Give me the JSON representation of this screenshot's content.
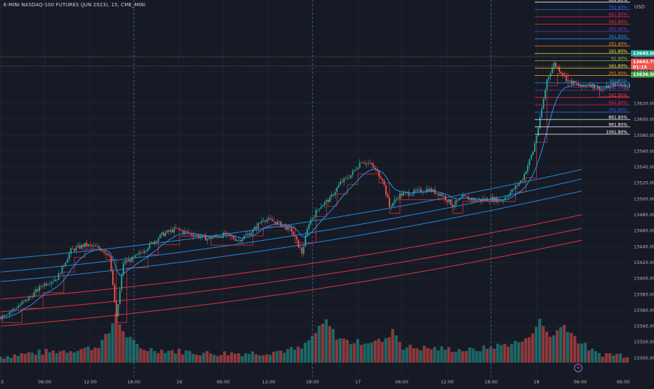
{
  "header": {
    "title": "E-MINI NASDAQ-100 FUTURES (JUN 2023), 15, CME_MINI",
    "currency": "USD"
  },
  "price_labels": {
    "upper": "13645.00",
    "last": "13642.75",
    "countdown": "01:15",
    "lower": "13636.50"
  },
  "colors": {
    "background": "#161a25",
    "up": "#26a69a",
    "down": "#ef5350",
    "grid": "#1f2330",
    "ma_fast": "#2196f3",
    "vwap": "#f23645",
    "band_blue": "#2196f3",
    "band_red": "#f23645",
    "label_upper": "#26a69a",
    "label_last": "#ef5350",
    "label_lower": "#43a047"
  },
  "chart_data": {
    "type": "candlestick",
    "instrument": "E-MINI NASDAQ-100 FUTURES (JUN 2023)",
    "interval": "15",
    "exchange": "CME_MINI",
    "ylim": [
      13290,
      13735
    ],
    "y_ticks": [
      "13680.00",
      "13660.00",
      "13620.00",
      "13600.00",
      "13580.00",
      "13560.00",
      "13540.00",
      "13520.00",
      "13500.00",
      "13480.00",
      "13460.00",
      "13440.00",
      "13420.00",
      "13400.00",
      "13380.00",
      "13360.00",
      "13340.00",
      "13320.00",
      "13300.00"
    ],
    "x_ticks": [
      "15",
      "06:00",
      "12:00",
      "18:00",
      "16",
      "06:00",
      "12:00",
      "18:00",
      "17",
      "06:00",
      "12:00",
      "18:00",
      "18",
      "06:00"
    ],
    "session_breaks_x_index": [
      3,
      7,
      11
    ],
    "price_path": [
      [
        0,
        13352
      ],
      [
        8,
        13362
      ],
      [
        16,
        13375
      ],
      [
        24,
        13392
      ],
      [
        32,
        13400
      ],
      [
        40,
        13435
      ],
      [
        48,
        13442
      ],
      [
        56,
        13438
      ],
      [
        62,
        13430
      ],
      [
        66,
        13350
      ],
      [
        70,
        13420
      ],
      [
        76,
        13425
      ],
      [
        84,
        13440
      ],
      [
        92,
        13455
      ],
      [
        100,
        13462
      ],
      [
        110,
        13455
      ],
      [
        118,
        13450
      ],
      [
        128,
        13455
      ],
      [
        136,
        13448
      ],
      [
        144,
        13460
      ],
      [
        150,
        13475
      ],
      [
        158,
        13470
      ],
      [
        166,
        13460
      ],
      [
        172,
        13432
      ],
      [
        176,
        13470
      ],
      [
        182,
        13490
      ],
      [
        188,
        13500
      ],
      [
        194,
        13520
      ],
      [
        200,
        13530
      ],
      [
        206,
        13548
      ],
      [
        212,
        13542
      ],
      [
        218,
        13525
      ],
      [
        222,
        13490
      ],
      [
        228,
        13505
      ],
      [
        236,
        13508
      ],
      [
        244,
        13512
      ],
      [
        252,
        13505
      ],
      [
        258,
        13492
      ],
      [
        264,
        13502
      ],
      [
        272,
        13498
      ],
      [
        280,
        13500
      ],
      [
        286,
        13498
      ],
      [
        292,
        13510
      ],
      [
        298,
        13525
      ],
      [
        304,
        13560
      ],
      [
        308,
        13600
      ],
      [
        312,
        13650
      ],
      [
        316,
        13670
      ],
      [
        320,
        13660
      ],
      [
        324,
        13648
      ],
      [
        328,
        13645
      ],
      [
        332,
        13640
      ],
      [
        336,
        13645
      ],
      [
        340,
        13640
      ],
      [
        344,
        13638
      ],
      [
        348,
        13642
      ],
      [
        352,
        13645
      ],
      [
        356,
        13643
      ],
      [
        360,
        13643
      ]
    ],
    "volume_path": [
      [
        0,
        13300
      ],
      [
        20,
        13305
      ],
      [
        40,
        13308
      ],
      [
        55,
        13312
      ],
      [
        62,
        13330
      ],
      [
        66,
        13355
      ],
      [
        70,
        13330
      ],
      [
        80,
        13310
      ],
      [
        120,
        13304
      ],
      [
        150,
        13305
      ],
      [
        172,
        13310
      ],
      [
        180,
        13330
      ],
      [
        186,
        13345
      ],
      [
        192,
        13325
      ],
      [
        200,
        13318
      ],
      [
        220,
        13320
      ],
      [
        224,
        13335
      ],
      [
        230,
        13312
      ],
      [
        270,
        13308
      ],
      [
        300,
        13320
      ],
      [
        308,
        13345
      ],
      [
        314,
        13325
      ],
      [
        322,
        13340
      ],
      [
        330,
        13320
      ],
      [
        340,
        13304
      ],
      [
        360,
        13302
      ]
    ],
    "fib_levels": [
      {
        "label": "661.80%",
        "color": "#ffffff"
      },
      {
        "label": "761.80%",
        "color": "#2962ff"
      },
      {
        "label": "661.80%",
        "color": "#e91e63"
      },
      {
        "label": "561.80%",
        "color": "#f23645"
      },
      {
        "label": "461.80%",
        "color": "#673ab7"
      },
      {
        "label": "361.80%",
        "color": "#2196f3"
      },
      {
        "label": "261.80%",
        "color": "#f7931a"
      },
      {
        "label": "161.80%",
        "color": "#ffeb3b"
      },
      {
        "label": "61.80%",
        "color": "#8bc34a"
      },
      {
        "label": "161.80%",
        "color": "#ffeb3b"
      },
      {
        "label": "261.80%",
        "color": "#f7931a"
      },
      {
        "label": "361.80%",
        "color": "#2196f3"
      },
      {
        "label": "461.80%",
        "color": "#673ab7"
      },
      {
        "label": "561.80%",
        "color": "#f23645"
      },
      {
        "label": "661.80%",
        "color": "#e91e63"
      },
      {
        "label": "761.80%",
        "color": "#2962ff"
      },
      {
        "label": "861.80%",
        "color": "#ffffff"
      },
      {
        "label": "961.80%",
        "color": "#ffffff"
      },
      {
        "label": "1061.80%",
        "color": "#ffffff"
      }
    ],
    "bands": [
      {
        "color": "#2196f3",
        "start": 13424,
        "end": 13537
      },
      {
        "color": "#2196f3",
        "start": 13408,
        "end": 13525
      },
      {
        "color": "#2196f3",
        "start": 13396,
        "end": 13510
      },
      {
        "color": "#f23645",
        "start": 13374,
        "end": 13480
      },
      {
        "color": "#f23645",
        "start": 13358,
        "end": 13463
      },
      {
        "color": "#f23645",
        "start": 13340,
        "end": 13448
      }
    ]
  }
}
